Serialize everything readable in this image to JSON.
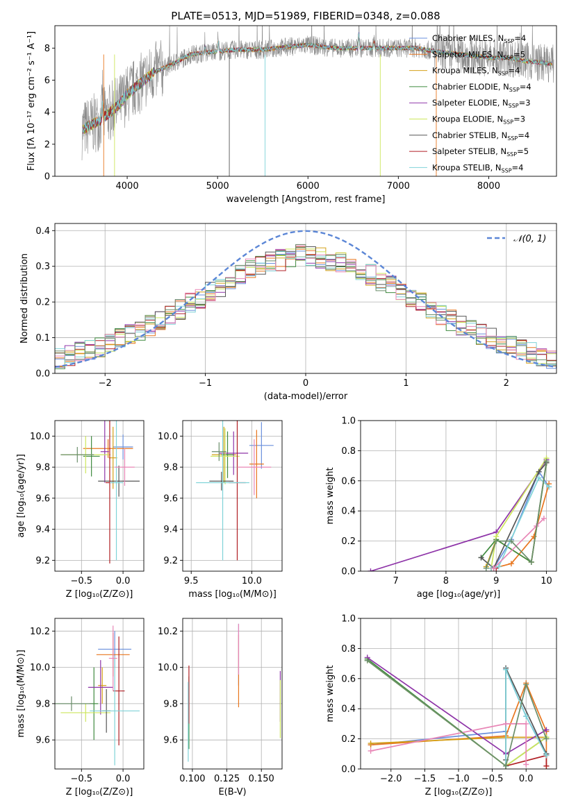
{
  "figure": {
    "title": "PLATE=0513, MJD=51989, FIBERID=0348, z=0.088"
  },
  "colors": [
    "#6a8fdc",
    "#e8761e",
    "#d4a017",
    "#3f8a3f",
    "#8e34a8",
    "#cce65c",
    "#555555",
    "#b01f24",
    "#7fd3d8",
    "#e886b6",
    "#6b8e6b"
  ],
  "chart_data": [
    {
      "id": "spectrum",
      "type": "line",
      "title": "PLATE=0513, MJD=51989, FIBERID=0348, z=0.088",
      "xlabel": "wavelength [Angstrom, rest frame]",
      "ylabel": "Flux [fλ 10⁻¹⁷ erg cm⁻² s⁻¹ A⁻¹]",
      "xlim": [
        3200,
        8750
      ],
      "ylim": [
        0,
        9.4
      ],
      "xticks": [
        4000,
        5000,
        6000,
        7000,
        8000
      ],
      "yticks": [
        0,
        2,
        4,
        6,
        8
      ],
      "legend_position": "upper right",
      "legend": [
        {
          "label": "Chabrier MILES, N",
          "sub": "SSP",
          "tail": "=4",
          "color": "#6a8fdc"
        },
        {
          "label": "Salpeter MILES, N",
          "sub": "SSP",
          "tail": "=5",
          "color": "#e8761e"
        },
        {
          "label": "Kroupa MILES, N",
          "sub": "SSP",
          "tail": "=4",
          "color": "#d4a017"
        },
        {
          "label": "Chabrier ELODIE, N",
          "sub": "SSP",
          "tail": "=4",
          "color": "#3f8a3f"
        },
        {
          "label": "Salpeter ELODIE, N",
          "sub": "SSP",
          "tail": "=3",
          "color": "#8e34a8"
        },
        {
          "label": "Kroupa ELODIE, N",
          "sub": "SSP",
          "tail": "=3",
          "color": "#cce65c"
        },
        {
          "label": "Chabrier STELIB, N",
          "sub": "SSP",
          "tail": "=4",
          "color": "#555555"
        },
        {
          "label": "Salpeter STELIB, N",
          "sub": "SSP",
          "tail": "=5",
          "color": "#b01f24"
        },
        {
          "label": "Kroupa STELIB, N",
          "sub": "SSP",
          "tail": "=4",
          "color": "#7fd3d8"
        }
      ],
      "data_continuum": {
        "x": [
          3500,
          3700,
          3900,
          4000,
          4100,
          4300,
          4500,
          4700,
          5000,
          5200,
          5500,
          5800,
          6000,
          6300,
          6600,
          7000,
          7200,
          7400,
          7700,
          8000,
          8200,
          8400,
          8750
        ],
        "y": [
          2.9,
          3.5,
          4.4,
          5.1,
          5.6,
          6.5,
          7.0,
          7.6,
          7.8,
          7.9,
          7.9,
          8.1,
          8.2,
          8.0,
          8.0,
          8.0,
          8.0,
          7.8,
          7.6,
          7.4,
          7.4,
          7.2,
          7.0
        ]
      }
    },
    {
      "id": "residuals",
      "type": "histogram",
      "xlabel": "(data-model)/error",
      "ylabel": "Normed distribution",
      "xlim": [
        -2.5,
        2.5
      ],
      "ylim": [
        0,
        0.42
      ],
      "xticks": [
        -2,
        -1,
        0,
        1,
        2
      ],
      "yticks": [
        0.0,
        0.1,
        0.2,
        0.3,
        0.4
      ],
      "legend_position": "upper right",
      "reference_label": "𝒩(0, 1)",
      "reference_color": "#5b86d6",
      "base_profile": {
        "x": [
          -2.5,
          -2.0,
          -1.5,
          -1.0,
          -0.5,
          0.0,
          0.5,
          1.0,
          1.5,
          2.0,
          2.5
        ],
        "y": [
          0.035,
          0.08,
          0.14,
          0.22,
          0.3,
          0.335,
          0.3,
          0.22,
          0.14,
          0.08,
          0.035
        ]
      }
    },
    {
      "id": "z-age",
      "type": "scatter",
      "xlabel": "Z [log₁₀(Z/Z⊙)]",
      "ylabel": "age  [log₁₀(age/yr)]",
      "xlim": [
        -0.82,
        0.25
      ],
      "ylim": [
        9.13,
        10.1
      ],
      "xticks": [
        -0.5,
        0.0
      ],
      "yticks": [
        9.2,
        9.4,
        9.6,
        9.8,
        10.0
      ],
      "points": [
        {
          "x": 0.0,
          "y": 9.93,
          "ex": 0.12,
          "ey": 0.08,
          "c": 0
        },
        {
          "x": -0.18,
          "y": 9.92,
          "ex": 0.3,
          "ey": 0.06,
          "c": 1
        },
        {
          "x": -0.12,
          "y": 9.86,
          "ex": 0.05,
          "ey": 0.2,
          "c": 2
        },
        {
          "x": -0.38,
          "y": 9.87,
          "ex": 0.1,
          "ey": 0.13,
          "c": 3
        },
        {
          "x": -0.22,
          "y": 9.9,
          "ex": 0.05,
          "ey": 0.2,
          "c": 4
        },
        {
          "x": -0.45,
          "y": 9.88,
          "ex": 0.3,
          "ey": 0.12,
          "c": 5
        },
        {
          "x": -0.05,
          "y": 9.71,
          "ex": 0.25,
          "ey": 0.1,
          "c": 6
        },
        {
          "x": -0.16,
          "y": 9.7,
          "ex": 0.05,
          "ey": 0.52,
          "c": 7
        },
        {
          "x": -0.08,
          "y": 9.7,
          "ex": 0.08,
          "ey": 0.5,
          "c": 8
        },
        {
          "x": 0.02,
          "y": 9.8,
          "ex": 0.12,
          "ey": 0.12,
          "c": 9
        },
        {
          "x": -0.55,
          "y": 9.88,
          "ex": 0.2,
          "ey": 0.05,
          "c": 10
        }
      ]
    },
    {
      "id": "mass-age",
      "type": "scatter",
      "xlabel": "mass [log₁₀(M/M⊙)]",
      "ylabel": "",
      "xlim": [
        9.43,
        10.25
      ],
      "ylim": [
        9.13,
        10.1
      ],
      "xticks": [
        9.5,
        10.0
      ],
      "yticks": [
        9.2,
        9.4,
        9.6,
        9.8,
        10.0
      ],
      "points": [
        {
          "x": 10.08,
          "y": 9.94,
          "ex": 0.1,
          "ey": 0.15,
          "c": 0
        },
        {
          "x": 10.04,
          "y": 9.82,
          "ex": 0.06,
          "ey": 0.22,
          "c": 1
        },
        {
          "x": 9.77,
          "y": 9.88,
          "ex": 0.1,
          "ey": 0.18,
          "c": 2
        },
        {
          "x": 9.8,
          "y": 9.88,
          "ex": 0.05,
          "ey": 0.15,
          "c": 3
        },
        {
          "x": 9.85,
          "y": 9.89,
          "ex": 0.12,
          "ey": 0.14,
          "c": 4
        },
        {
          "x": 9.78,
          "y": 9.87,
          "ex": 0.12,
          "ey": 0.18,
          "c": 5
        },
        {
          "x": 9.75,
          "y": 9.71,
          "ex": 0.1,
          "ey": 0.06,
          "c": 6
        },
        {
          "x": 9.88,
          "y": 9.7,
          "ex": 0.07,
          "ey": 0.5,
          "c": 7
        },
        {
          "x": 9.76,
          "y": 9.7,
          "ex": 0.22,
          "ey": 0.5,
          "c": 8
        },
        {
          "x": 10.02,
          "y": 9.8,
          "ex": 0.14,
          "ey": 0.18,
          "c": 9
        },
        {
          "x": 9.73,
          "y": 9.9,
          "ex": 0.06,
          "ey": 0.06,
          "c": 10
        }
      ]
    },
    {
      "id": "age-weight",
      "type": "line",
      "xlabel": "age  [log₁₀(age/yr)]",
      "ylabel": "mass weight",
      "xlim": [
        6.3,
        10.2
      ],
      "ylim": [
        0,
        1.0
      ],
      "xticks": [
        7,
        8,
        9,
        10
      ],
      "yticks": [
        0.0,
        0.2,
        0.4,
        0.6,
        0.8,
        1.0
      ],
      "series": [
        {
          "c": 0,
          "x": [
            8.95,
            9.3,
            9.85,
            10.05
          ],
          "y": [
            0.02,
            0.21,
            0.66,
            0.56
          ]
        },
        {
          "c": 1,
          "x": [
            8.95,
            9.3,
            9.75,
            10.05
          ],
          "y": [
            0.02,
            0.05,
            0.23,
            0.58
          ]
        },
        {
          "c": 2,
          "x": [
            8.8,
            9.0,
            9.7,
            10.0
          ],
          "y": [
            0.03,
            0.21,
            0.06,
            0.72
          ]
        },
        {
          "c": 3,
          "x": [
            8.7,
            9.0,
            9.7,
            10.0
          ],
          "y": [
            0.09,
            0.21,
            0.06,
            0.72
          ]
        },
        {
          "c": 4,
          "x": [
            6.5,
            9.0,
            10.0
          ],
          "y": [
            0.0,
            0.26,
            0.74
          ]
        },
        {
          "c": 5,
          "x": [
            8.9,
            9.0,
            10.0
          ],
          "y": [
            0.02,
            0.23,
            0.75
          ]
        },
        {
          "c": 6,
          "x": [
            8.7,
            8.95,
            9.85,
            10.0
          ],
          "y": [
            0.09,
            0.02,
            0.66,
            0.72
          ]
        },
        {
          "c": 7,
          "x": [
            8.9,
            9.0
          ],
          "y": [
            0.02,
            0.02
          ]
        },
        {
          "c": 8,
          "x": [
            8.9,
            9.05,
            9.85,
            10.05
          ],
          "y": [
            0.02,
            0.03,
            0.62,
            0.56
          ]
        },
        {
          "c": 9,
          "x": [
            8.95,
            9.8,
            9.95
          ],
          "y": [
            0.02,
            0.3,
            0.35
          ]
        },
        {
          "c": 10,
          "x": [
            8.8,
            9.0,
            9.3,
            9.7,
            10.0
          ],
          "y": [
            0.02,
            0.2,
            0.2,
            0.06,
            0.73
          ]
        }
      ]
    },
    {
      "id": "z-mass",
      "type": "scatter",
      "xlabel": "Z [log₁₀(Z/Z⊙)]",
      "ylabel": "mass [log₁₀(M/M⊙)]",
      "xlim": [
        -0.82,
        0.25
      ],
      "ylim": [
        9.44,
        10.27
      ],
      "xticks": [
        -0.5,
        0.0
      ],
      "yticks": [
        9.6,
        9.8,
        10.0,
        10.2
      ],
      "points": [
        {
          "x": -0.1,
          "y": 10.1,
          "ex": 0.2,
          "ey": 0.1,
          "c": 0
        },
        {
          "x": -0.12,
          "y": 10.07,
          "ex": 0.2,
          "ey": 0.12,
          "c": 1
        },
        {
          "x": -0.25,
          "y": 9.9,
          "ex": 0.05,
          "ey": 0.1,
          "c": 2
        },
        {
          "x": -0.35,
          "y": 9.8,
          "ex": 0.05,
          "ey": 0.2,
          "c": 3
        },
        {
          "x": -0.27,
          "y": 9.89,
          "ex": 0.15,
          "ey": 0.15,
          "c": 4
        },
        {
          "x": -0.45,
          "y": 9.75,
          "ex": 0.3,
          "ey": 0.05,
          "c": 5
        },
        {
          "x": -0.2,
          "y": 9.76,
          "ex": 0.05,
          "ey": 0.12,
          "c": 6
        },
        {
          "x": -0.05,
          "y": 9.87,
          "ex": 0.07,
          "ey": 0.3,
          "c": 7
        },
        {
          "x": -0.1,
          "y": 9.76,
          "ex": 0.3,
          "ey": 0.3,
          "c": 8
        },
        {
          "x": -0.12,
          "y": 10.05,
          "ex": 0.05,
          "ey": 0.18,
          "c": 9
        },
        {
          "x": -0.62,
          "y": 9.8,
          "ex": 0.25,
          "ey": 0.04,
          "c": 10
        }
      ]
    },
    {
      "id": "ebv-mass",
      "type": "scatter",
      "xlabel": "E(B-V)",
      "ylabel": "",
      "xlim": [
        0.093,
        0.165
      ],
      "ylim": [
        9.44,
        10.27
      ],
      "xticks": [
        0.1,
        0.125,
        0.15
      ],
      "xticklabels": [
        "0.100",
        "0.125",
        "0.150"
      ],
      "yticks": [
        9.6,
        9.8,
        10.0,
        10.2
      ],
      "points": [
        {
          "x": 0.1335,
          "y": 10.07,
          "ex": 0.0,
          "ey": 0.17,
          "c": 0
        },
        {
          "x": 0.1335,
          "y": 9.98,
          "ex": 0.0,
          "ey": 0.2,
          "c": 1
        },
        {
          "x": 0.0975,
          "y": 9.75,
          "ex": 0.0,
          "ey": 0.2,
          "c": 3
        },
        {
          "x": 0.0975,
          "y": 9.85,
          "ex": 0.0,
          "ey": 0.16,
          "c": 7
        },
        {
          "x": 0.097,
          "y": 9.7,
          "ex": 0.0,
          "ey": 0.22,
          "c": 8
        },
        {
          "x": 0.1637,
          "y": 9.84,
          "ex": 0.0,
          "ey": 0.14,
          "c": 4
        },
        {
          "x": 0.1637,
          "y": 9.77,
          "ex": 0.0,
          "ey": 0.16,
          "c": 5
        },
        {
          "x": 0.1335,
          "y": 10.1,
          "ex": 0.0,
          "ey": 0.14,
          "c": 9
        }
      ]
    },
    {
      "id": "z-weight",
      "type": "line",
      "xlabel": "Z [log₁₀(Z/Z⊙)]",
      "ylabel": "mass weight",
      "xlim": [
        -2.45,
        0.45
      ],
      "ylim": [
        0,
        1.0
      ],
      "xticks": [
        -2.0,
        -1.5,
        -1.0,
        -0.5,
        0.0
      ],
      "yticks": [
        0.0,
        0.2,
        0.4,
        0.6,
        0.8,
        1.0
      ],
      "series": [
        {
          "c": 0,
          "x": [
            -2.3,
            -0.3,
            -0.3,
            0.0,
            0.3
          ],
          "y": [
            0.16,
            0.25,
            0.66,
            0.35,
            0.1
          ]
        },
        {
          "c": 1,
          "x": [
            -2.3,
            -0.3,
            0.0,
            0.3,
            0.3
          ],
          "y": [
            0.16,
            0.22,
            0.57,
            0.25,
            0.02
          ]
        },
        {
          "c": 2,
          "x": [
            -2.3,
            -0.3,
            0.3
          ],
          "y": [
            0.17,
            0.21,
            0.21
          ]
        },
        {
          "c": 3,
          "x": [
            -2.35,
            -0.3,
            0.3
          ],
          "y": [
            0.73,
            0.02,
            0.21
          ]
        },
        {
          "c": 4,
          "x": [
            -2.35,
            -0.3,
            0.3
          ],
          "y": [
            0.74,
            0.1,
            0.26
          ]
        },
        {
          "c": 5,
          "x": [
            -2.35,
            -0.3,
            0.3
          ],
          "y": [
            0.72,
            0.02,
            0.21
          ]
        },
        {
          "c": 6,
          "x": [
            -0.3,
            -0.3,
            0.3
          ],
          "y": [
            0.06,
            0.67,
            0.1
          ]
        },
        {
          "c": 7,
          "x": [
            -0.3,
            0.3,
            0.3
          ],
          "y": [
            0.02,
            0.09,
            0.02
          ]
        },
        {
          "c": 8,
          "x": [
            -0.3,
            -0.3,
            0.0,
            0.3
          ],
          "y": [
            0.02,
            0.66,
            0.35,
            0.09
          ]
        },
        {
          "c": 9,
          "x": [
            -2.3,
            -0.3,
            0.0,
            0.0
          ],
          "y": [
            0.12,
            0.3,
            0.3,
            0.03
          ]
        },
        {
          "c": 10,
          "x": [
            -2.35,
            -0.3,
            0.0,
            0.3
          ],
          "y": [
            0.72,
            0.02,
            0.56,
            0.2
          ]
        }
      ]
    }
  ]
}
